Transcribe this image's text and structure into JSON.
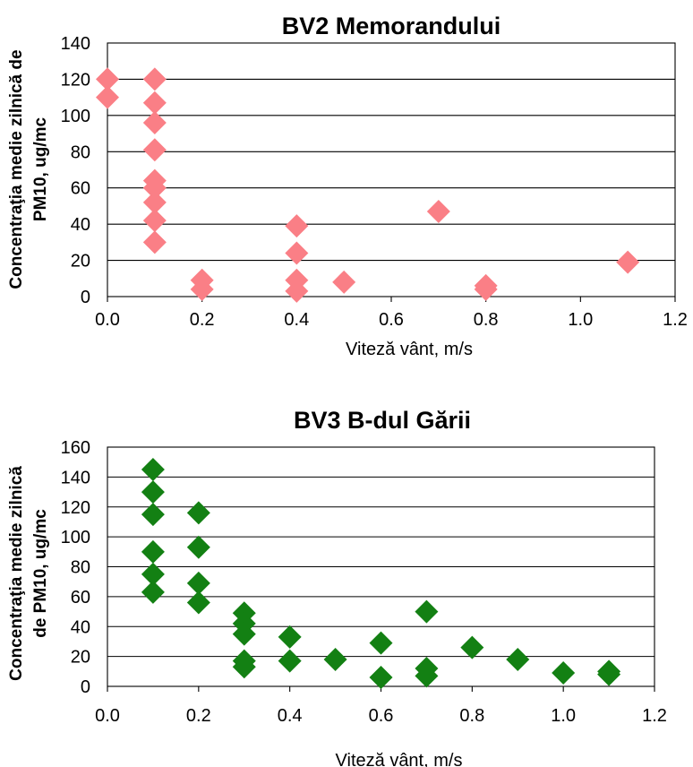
{
  "chart_data": [
    {
      "type": "scatter",
      "title": "BV2 Memorandului",
      "xlabel": "Viteză vânt, m/s",
      "ylabel_lines": [
        "Concentraţia medie zilnică de",
        "PM10, ug/mc"
      ],
      "xlim": [
        0,
        1.2
      ],
      "ylim": [
        0,
        140
      ],
      "xticks": [
        "0.0",
        "0.2",
        "0.4",
        "0.6",
        "0.8",
        "1.0",
        "1.2"
      ],
      "yticks": [
        "0",
        "20",
        "40",
        "60",
        "80",
        "100",
        "120",
        "140"
      ],
      "grid": "horizontal",
      "legend": "none",
      "marker_color": "#fa7f86",
      "marker": "diamond",
      "points": [
        {
          "x": 0.0,
          "y": 120
        },
        {
          "x": 0.0,
          "y": 110
        },
        {
          "x": 0.1,
          "y": 120
        },
        {
          "x": 0.1,
          "y": 107
        },
        {
          "x": 0.1,
          "y": 96
        },
        {
          "x": 0.1,
          "y": 81
        },
        {
          "x": 0.1,
          "y": 64
        },
        {
          "x": 0.1,
          "y": 60
        },
        {
          "x": 0.1,
          "y": 52
        },
        {
          "x": 0.1,
          "y": 42
        },
        {
          "x": 0.1,
          "y": 30
        },
        {
          "x": 0.2,
          "y": 9
        },
        {
          "x": 0.2,
          "y": 4
        },
        {
          "x": 0.4,
          "y": 39
        },
        {
          "x": 0.4,
          "y": 24
        },
        {
          "x": 0.4,
          "y": 9
        },
        {
          "x": 0.4,
          "y": 3
        },
        {
          "x": 0.5,
          "y": 8
        },
        {
          "x": 0.7,
          "y": 47
        },
        {
          "x": 0.8,
          "y": 6
        },
        {
          "x": 0.8,
          "y": 4
        },
        {
          "x": 1.1,
          "y": 19
        }
      ]
    },
    {
      "type": "scatter",
      "title": "BV3 B-dul Gării",
      "xlabel": "Viteză vânt, m/s",
      "ylabel_lines": [
        "Concentraţia medie zilnică",
        "de PM10, ug/mc"
      ],
      "xlim": [
        0,
        1.2
      ],
      "ylim": [
        0,
        160
      ],
      "xticks": [
        "0.0",
        "0.2",
        "0.4",
        "0.6",
        "0.8",
        "1.0",
        "1.2"
      ],
      "yticks": [
        "0",
        "20",
        "40",
        "60",
        "80",
        "100",
        "120",
        "140",
        "160"
      ],
      "grid": "horizontal",
      "legend": "none",
      "marker_color": "#138013",
      "marker": "diamond",
      "points": [
        {
          "x": 0.1,
          "y": 145
        },
        {
          "x": 0.1,
          "y": 130
        },
        {
          "x": 0.1,
          "y": 115
        },
        {
          "x": 0.1,
          "y": 90
        },
        {
          "x": 0.1,
          "y": 75
        },
        {
          "x": 0.1,
          "y": 63
        },
        {
          "x": 0.2,
          "y": 116
        },
        {
          "x": 0.2,
          "y": 93
        },
        {
          "x": 0.2,
          "y": 69
        },
        {
          "x": 0.2,
          "y": 56
        },
        {
          "x": 0.3,
          "y": 49
        },
        {
          "x": 0.3,
          "y": 42
        },
        {
          "x": 0.3,
          "y": 35
        },
        {
          "x": 0.3,
          "y": 17
        },
        {
          "x": 0.3,
          "y": 13
        },
        {
          "x": 0.4,
          "y": 33
        },
        {
          "x": 0.4,
          "y": 17
        },
        {
          "x": 0.5,
          "y": 18
        },
        {
          "x": 0.6,
          "y": 29
        },
        {
          "x": 0.6,
          "y": 6
        },
        {
          "x": 0.7,
          "y": 50
        },
        {
          "x": 0.7,
          "y": 12
        },
        {
          "x": 0.7,
          "y": 7
        },
        {
          "x": 0.8,
          "y": 26
        },
        {
          "x": 0.9,
          "y": 18
        },
        {
          "x": 1.0,
          "y": 9
        },
        {
          "x": 1.1,
          "y": 10
        },
        {
          "x": 1.1,
          "y": 8
        }
      ]
    }
  ]
}
